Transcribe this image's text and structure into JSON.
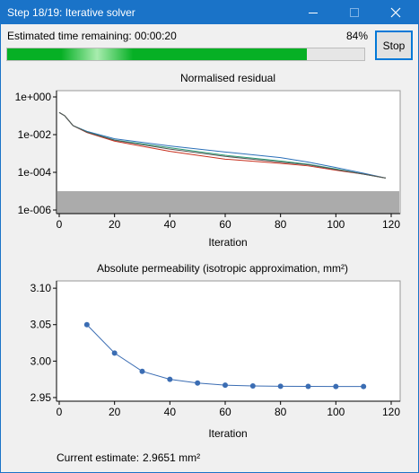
{
  "window": {
    "title": "Step 18/19: Iterative solver",
    "controls": [
      "minimize-icon",
      "maximize-icon",
      "close-icon"
    ]
  },
  "status": {
    "eta_label": "Estimated time remaining: 00:00:20",
    "percent_label": "84%",
    "progress": 0.84,
    "stop_label": "Stop"
  },
  "colors": {
    "titlebar": "#1a73c8",
    "progress": "#06b025",
    "residual_series": [
      "#2a6fb8",
      "#c8301e",
      "#2a9b73",
      "#555555"
    ],
    "permeability_series": "#3b6db3",
    "shaded_region": "#ababab"
  },
  "current": {
    "label": "Current estimate:",
    "value": "2.9651 mm²"
  },
  "chart_data": [
    {
      "type": "line",
      "title": "Normalised residual",
      "xlabel": "Iteration",
      "ylabel": "",
      "xlim": [
        0,
        120
      ],
      "ylim": [
        1e-06,
        1
      ],
      "yscale": "log",
      "xticks": [
        0,
        20,
        40,
        60,
        80,
        100,
        120
      ],
      "yticks": [
        "1e-006",
        "1e-004",
        "1e-002",
        "1e+000"
      ],
      "shaded_band": [
        1e-06,
        1e-05
      ],
      "grid": false,
      "series": [
        {
          "x": [
            0,
            2,
            5,
            10,
            20,
            40,
            60,
            80,
            90,
            100,
            110,
            118
          ],
          "y": [
            0.15,
            0.1,
            0.03,
            0.015,
            0.006,
            0.0025,
            0.0012,
            0.0006,
            0.00035,
            0.00018,
            9e-05,
            5e-05
          ]
        },
        {
          "x": [
            0,
            2,
            5,
            10,
            20,
            40,
            60,
            80,
            90,
            100,
            110,
            118
          ],
          "y": [
            0.15,
            0.1,
            0.03,
            0.013,
            0.0045,
            0.0013,
            0.0005,
            0.0003,
            0.00022,
            0.00013,
            8e-05,
            5e-05
          ]
        },
        {
          "x": [
            0,
            2,
            5,
            10,
            20,
            40,
            60,
            80,
            90,
            100,
            110,
            118
          ],
          "y": [
            0.15,
            0.1,
            0.03,
            0.014,
            0.0052,
            0.002,
            0.0008,
            0.0004,
            0.00027,
            0.00015,
            8e-05,
            5e-05
          ]
        },
        {
          "x": [
            0,
            2,
            5,
            10,
            20,
            40,
            60,
            80,
            90,
            100,
            110,
            118
          ],
          "y": [
            0.15,
            0.1,
            0.03,
            0.0135,
            0.005,
            0.0017,
            0.0007,
            0.00035,
            0.00025,
            0.00014,
            8e-05,
            5e-05
          ]
        }
      ]
    },
    {
      "type": "line",
      "title": "Absolute permeability (isotropic approximation, mm²)",
      "xlabel": "Iteration",
      "ylabel": "",
      "xlim": [
        0,
        120
      ],
      "ylim": [
        2.945,
        3.11
      ],
      "xticks": [
        0,
        20,
        40,
        60,
        80,
        100,
        120
      ],
      "yticks": [
        2.95,
        3.0,
        3.05,
        3.1
      ],
      "ytick_labels": [
        "2.95",
        "3.00",
        "3.05",
        "3.10"
      ],
      "grid": false,
      "series": [
        {
          "x": [
            10,
            20,
            30,
            40,
            50,
            60,
            70,
            80,
            90,
            100,
            110
          ],
          "y": [
            3.05,
            3.011,
            2.986,
            2.975,
            2.97,
            2.967,
            2.966,
            2.9655,
            2.9653,
            2.9652,
            2.9651
          ]
        }
      ]
    }
  ]
}
